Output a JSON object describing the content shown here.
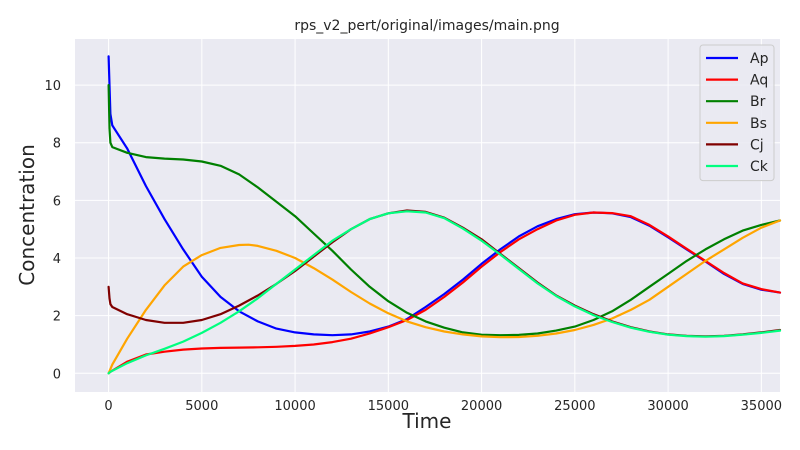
{
  "chart_data": {
    "type": "line",
    "title": "rps_v2_pert/original/images/main.png",
    "xlabel": "Time",
    "ylabel": "Concentration",
    "xlim": [
      -1800,
      36000
    ],
    "ylim": [
      -0.65,
      11.6
    ],
    "xticks": [
      0,
      5000,
      10000,
      15000,
      20000,
      25000,
      30000,
      35000
    ],
    "xtick_labels": [
      "0",
      "5000",
      "10000",
      "15000",
      "20000",
      "25000",
      "30000",
      "35000"
    ],
    "yticks": [
      0,
      2,
      4,
      6,
      8,
      10
    ],
    "ytick_labels": [
      "0",
      "2",
      "4",
      "6",
      "8",
      "10"
    ],
    "grid": true,
    "legend_position": "upper right",
    "background": "#eaeaf2",
    "series": [
      {
        "name": "Ap",
        "color": "#0000ff",
        "x": [
          0,
          100,
          200,
          1000,
          2000,
          3000,
          4000,
          5000,
          6000,
          7000,
          8000,
          9000,
          10000,
          11000,
          12000,
          13000,
          14000,
          15000,
          16000,
          17000,
          18000,
          19000,
          20000,
          21000,
          22000,
          23000,
          24000,
          25000,
          26000,
          27000,
          28000,
          29000,
          30000,
          31000,
          32000,
          33000,
          34000,
          35000,
          36000
        ],
        "y": [
          11.0,
          9.0,
          8.6,
          7.8,
          6.5,
          5.35,
          4.3,
          3.35,
          2.65,
          2.15,
          1.8,
          1.55,
          1.42,
          1.35,
          1.32,
          1.35,
          1.45,
          1.62,
          1.88,
          2.3,
          2.75,
          3.25,
          3.8,
          4.3,
          4.75,
          5.1,
          5.35,
          5.52,
          5.58,
          5.55,
          5.42,
          5.12,
          4.72,
          4.3,
          3.88,
          3.45,
          3.1,
          2.9,
          2.8
        ]
      },
      {
        "name": "Aq",
        "color": "#ff0000",
        "x": [
          0,
          100,
          1000,
          2000,
          3000,
          4000,
          5000,
          6000,
          7000,
          8000,
          9000,
          10000,
          11000,
          12000,
          13000,
          14000,
          15000,
          16000,
          17000,
          18000,
          19000,
          20000,
          21000,
          22000,
          23000,
          24000,
          25000,
          26000,
          27000,
          28000,
          29000,
          30000,
          31000,
          32000,
          33000,
          34000,
          35000,
          36000
        ],
        "y": [
          0.0,
          0.05,
          0.4,
          0.65,
          0.75,
          0.82,
          0.86,
          0.88,
          0.89,
          0.9,
          0.92,
          0.95,
          1.0,
          1.08,
          1.2,
          1.38,
          1.6,
          1.85,
          2.2,
          2.65,
          3.15,
          3.7,
          4.2,
          4.65,
          5.0,
          5.3,
          5.5,
          5.58,
          5.56,
          5.45,
          5.15,
          4.75,
          4.32,
          3.9,
          3.48,
          3.12,
          2.92,
          2.8
        ]
      },
      {
        "name": "Br",
        "color": "#008000",
        "x": [
          0,
          50,
          100,
          200,
          1000,
          2000,
          3000,
          4000,
          5000,
          6000,
          7000,
          8000,
          9000,
          10000,
          11000,
          12000,
          13000,
          14000,
          15000,
          16000,
          17000,
          18000,
          19000,
          20000,
          21000,
          22000,
          23000,
          24000,
          25000,
          26000,
          27000,
          28000,
          29000,
          30000,
          31000,
          32000,
          33000,
          34000,
          35000,
          36000
        ],
        "y": [
          10.0,
          8.5,
          8.0,
          7.85,
          7.65,
          7.5,
          7.45,
          7.42,
          7.35,
          7.2,
          6.9,
          6.45,
          5.95,
          5.45,
          4.85,
          4.25,
          3.6,
          3.0,
          2.5,
          2.1,
          1.8,
          1.58,
          1.42,
          1.34,
          1.32,
          1.33,
          1.38,
          1.48,
          1.62,
          1.85,
          2.15,
          2.55,
          3.0,
          3.45,
          3.9,
          4.3,
          4.65,
          4.95,
          5.15,
          5.3
        ]
      },
      {
        "name": "Bs",
        "color": "#ffa500",
        "x": [
          0,
          200,
          1000,
          2000,
          3000,
          4000,
          5000,
          6000,
          7000,
          7500,
          8000,
          9000,
          10000,
          11000,
          12000,
          13000,
          14000,
          15000,
          16000,
          17000,
          18000,
          19000,
          20000,
          21000,
          22000,
          23000,
          24000,
          25000,
          26000,
          27000,
          28000,
          29000,
          30000,
          31000,
          32000,
          33000,
          34000,
          35000,
          36000
        ],
        "y": [
          0.0,
          0.3,
          1.2,
          2.2,
          3.05,
          3.7,
          4.1,
          4.35,
          4.45,
          4.46,
          4.42,
          4.25,
          4.0,
          3.65,
          3.25,
          2.82,
          2.42,
          2.08,
          1.8,
          1.6,
          1.45,
          1.35,
          1.28,
          1.25,
          1.26,
          1.3,
          1.38,
          1.5,
          1.68,
          1.9,
          2.2,
          2.55,
          3.0,
          3.45,
          3.9,
          4.3,
          4.7,
          5.05,
          5.3
        ]
      },
      {
        "name": "Cj",
        "color": "#800000",
        "x": [
          0,
          50,
          100,
          200,
          1000,
          2000,
          3000,
          4000,
          5000,
          6000,
          7000,
          8000,
          9000,
          10000,
          11000,
          12000,
          13000,
          14000,
          15000,
          16000,
          17000,
          18000,
          19000,
          20000,
          21000,
          22000,
          23000,
          24000,
          25000,
          26000,
          27000,
          28000,
          29000,
          30000,
          31000,
          32000,
          33000,
          34000,
          35000,
          36000
        ],
        "y": [
          3.0,
          2.6,
          2.4,
          2.3,
          2.05,
          1.85,
          1.75,
          1.75,
          1.85,
          2.05,
          2.35,
          2.7,
          3.1,
          3.55,
          4.05,
          4.55,
          5.0,
          5.35,
          5.55,
          5.65,
          5.6,
          5.4,
          5.05,
          4.65,
          4.15,
          3.65,
          3.15,
          2.7,
          2.35,
          2.05,
          1.8,
          1.6,
          1.45,
          1.35,
          1.3,
          1.28,
          1.3,
          1.35,
          1.42,
          1.5
        ]
      },
      {
        "name": "Ck",
        "color": "#00ff7f",
        "x": [
          0,
          100,
          1000,
          2000,
          3000,
          4000,
          5000,
          6000,
          7000,
          8000,
          9000,
          10000,
          11000,
          12000,
          13000,
          14000,
          15000,
          16000,
          17000,
          18000,
          19000,
          20000,
          21000,
          22000,
          23000,
          24000,
          25000,
          26000,
          27000,
          28000,
          29000,
          30000,
          31000,
          32000,
          33000,
          34000,
          35000,
          36000
        ],
        "y": [
          0.0,
          0.05,
          0.35,
          0.62,
          0.85,
          1.1,
          1.4,
          1.75,
          2.15,
          2.6,
          3.1,
          3.6,
          4.1,
          4.6,
          5.0,
          5.35,
          5.55,
          5.62,
          5.58,
          5.38,
          5.02,
          4.6,
          4.12,
          3.62,
          3.12,
          2.68,
          2.32,
          2.02,
          1.78,
          1.58,
          1.44,
          1.34,
          1.29,
          1.27,
          1.29,
          1.34,
          1.4,
          1.48
        ]
      }
    ]
  }
}
